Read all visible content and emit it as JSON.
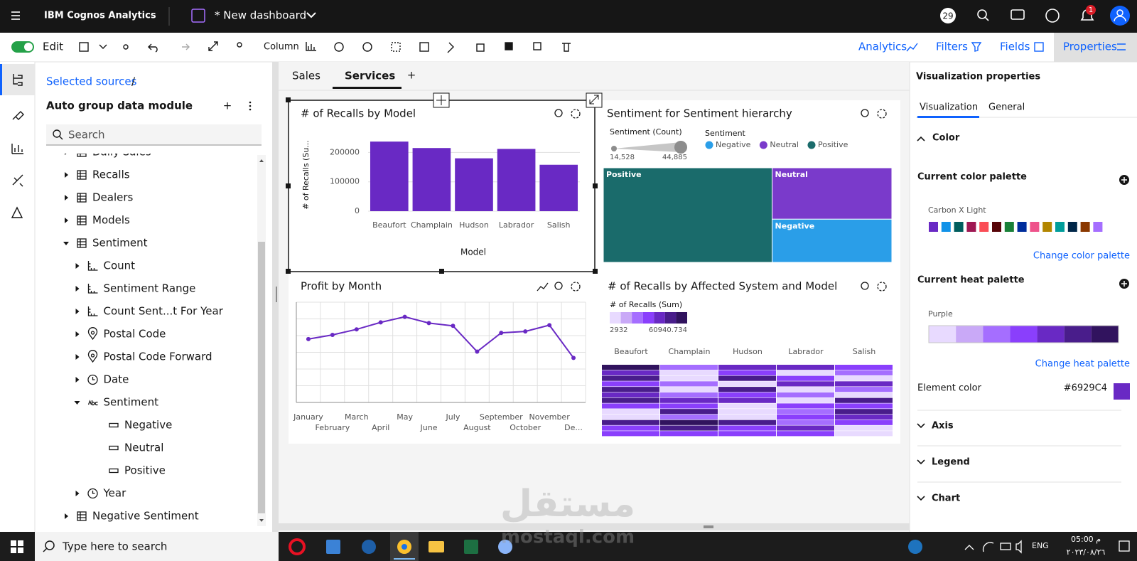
{
  "header": {
    "product": "IBM Cognos Analytics",
    "dashboard": "* New dashboard",
    "badge": "29",
    "notifications": "1"
  },
  "toolbar": {
    "edit": "Edit",
    "chart_type": "Column",
    "panels": [
      "Analytics",
      "Filters",
      "Fields",
      "Properties"
    ],
    "active_panel": 3
  },
  "data_panel": {
    "breadcrumb": "Selected sources",
    "separator": "/",
    "module": "Auto group data module",
    "add": "+",
    "search": "Search",
    "tree": [
      {
        "label": "Daily Sales",
        "level": 0,
        "icon": "table",
        "expanded": false
      },
      {
        "label": "Recalls",
        "level": 0,
        "icon": "table",
        "expanded": false
      },
      {
        "label": "Dealers",
        "level": 0,
        "icon": "table",
        "expanded": false
      },
      {
        "label": "Models",
        "level": 0,
        "icon": "table",
        "expanded": false
      },
      {
        "label": "Sentiment",
        "level": 0,
        "icon": "table",
        "expanded": true
      },
      {
        "label": "Count",
        "level": 1,
        "icon": "measure",
        "expanded": false
      },
      {
        "label": "Sentiment Range",
        "level": 1,
        "icon": "measure",
        "expanded": false
      },
      {
        "label": "Count Sent...t For Year",
        "level": 1,
        "icon": "measure",
        "expanded": false
      },
      {
        "label": "Postal Code",
        "level": 1,
        "icon": "pin",
        "expanded": false
      },
      {
        "label": "Postal Code Forward",
        "level": 1,
        "icon": "pin",
        "expanded": false
      },
      {
        "label": "Date",
        "level": 1,
        "icon": "clock",
        "expanded": false
      },
      {
        "label": "Sentiment",
        "level": 1,
        "icon": "text",
        "expanded": true
      },
      {
        "label": "Negative",
        "level": 2,
        "icon": "member",
        "expanded": null
      },
      {
        "label": "Neutral",
        "level": 2,
        "icon": "member",
        "expanded": null
      },
      {
        "label": "Positive",
        "level": 2,
        "icon": "member",
        "expanded": null
      },
      {
        "label": "Year",
        "level": 1,
        "icon": "clock",
        "expanded": false
      },
      {
        "label": "Negative Sentiment",
        "level": 0,
        "icon": "table",
        "expanded": false
      }
    ]
  },
  "tabs": {
    "items": [
      "Sales",
      "Services"
    ],
    "active": 1,
    "add": "+"
  },
  "chart_data": [
    {
      "type": "bar",
      "title": "# of Recalls by Model",
      "x_label": "Model",
      "y_label": "# of Recalls (Su...",
      "categories": [
        "Beaufort",
        "Champlain",
        "Hudson",
        "Labrador",
        "Salish"
      ],
      "values": [
        237000,
        215000,
        180000,
        212000,
        158000
      ],
      "color": "#6929c4",
      "ylim": [
        0,
        250000
      ],
      "yticks": [
        0,
        100000,
        200000
      ],
      "grid": true,
      "selected": true
    },
    {
      "type": "treemap",
      "title": "Sentiment for Sentiment hierarchy",
      "size_legend": {
        "title": "Sentiment (Count)",
        "range": [
          {
            "value": 14528,
            "label": "14,528"
          },
          {
            "value": 44885,
            "label": "44,885"
          }
        ]
      },
      "legend_title": "Sentiment",
      "legend_order": [
        2,
        1,
        0
      ],
      "categories": [
        "Positive",
        "Neutral",
        "Negative"
      ],
      "values": [
        44885,
        17300,
        14528
      ],
      "colors": [
        "#1a6b6b",
        "#7a3acb",
        "#2a9ee8"
      ]
    },
    {
      "type": "line",
      "title": "Profit by Month",
      "categories": [
        "January",
        "February",
        "March",
        "April",
        "May",
        "June",
        "July",
        "August",
        "September",
        "October",
        "November",
        "De..."
      ],
      "values": [
        91,
        97,
        105,
        115,
        123,
        114,
        110,
        73,
        100,
        102,
        111,
        64
      ],
      "color": "#6929c4",
      "ylim": [
        0,
        144
      ],
      "yticks": [
        0,
        24,
        48,
        72,
        96,
        120,
        144
      ],
      "grid": true,
      "ytick_labels": false
    },
    {
      "type": "heatmap",
      "title": "# of Recalls by Affected System and Model",
      "legend_title": "# of Recalls (Sum)",
      "range": [
        2932,
        60940.734
      ],
      "categories": [
        "Beaufort",
        "Champlain",
        "Hudson",
        "Labrador",
        "Salish"
      ],
      "colors": [
        "#e8daff",
        "#c9a9f7",
        "#a56eff",
        "#8a3ffc",
        "#6929c4",
        "#491d8b",
        "#31135e"
      ],
      "values": [
        [
          60000,
          20000,
          40000,
          40000,
          30000
        ],
        [
          40000,
          5000,
          30000,
          10000,
          20000
        ],
        [
          45000,
          10000,
          45000,
          30000,
          10000
        ],
        [
          30000,
          20000,
          10000,
          40000,
          40000
        ],
        [
          45000,
          2932,
          45000,
          10000,
          25000
        ],
        [
          40000,
          25000,
          30000,
          20000,
          5000
        ],
        [
          45000,
          40000,
          40000,
          5000,
          45000
        ],
        [
          30000,
          30000,
          10000,
          30000,
          35000
        ],
        [
          10000,
          45000,
          5000,
          20000,
          45000
        ],
        [
          3000,
          20000,
          3000,
          35000,
          40000
        ],
        [
          45000,
          60940.734,
          45000,
          25000,
          30000
        ],
        [
          35000,
          50000,
          35000,
          40000,
          5000
        ],
        [
          30000,
          35000,
          30000,
          30000,
          10000
        ]
      ]
    }
  ],
  "properties": {
    "title": "Visualization properties",
    "tabs": [
      "Visualization",
      "General"
    ],
    "active_tab": 0,
    "color_section": "Color",
    "color_palette": {
      "heading": "Current color palette",
      "name": "Carbon X Light",
      "colors": [
        "#6929c4",
        "#1192e8",
        "#005d5d",
        "#9f1853",
        "#fa4d56",
        "#570408",
        "#198038",
        "#002d9c",
        "#ee538b",
        "#b28600",
        "#009d9a",
        "#012749",
        "#8a3800",
        "#a56eff"
      ],
      "change": "Change color palette"
    },
    "heat_palette": {
      "heading": "Current heat palette",
      "name": "Purple",
      "colors": [
        "#e8daff",
        "#c9a9f7",
        "#a56eff",
        "#8a3ffc",
        "#6929c4",
        "#491d8b",
        "#31135e"
      ],
      "change": "Change heat palette"
    },
    "element_color": {
      "label": "Element color",
      "value": "#6929C4"
    },
    "sections": [
      "Axis",
      "Legend",
      "Chart"
    ]
  },
  "taskbar": {
    "search": "Type here to search",
    "lang": "ENG",
    "time": "05:00 م",
    "date": "٢٠٢٣/٠٨/٢٦"
  },
  "watermark": {
    "arabic": "مستقل",
    "latin": "mostaql.com"
  }
}
